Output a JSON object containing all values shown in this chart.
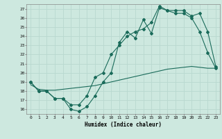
{
  "xlabel": "Humidex (Indice chaleur)",
  "xlim": [
    -0.5,
    23.5
  ],
  "ylim": [
    15.5,
    27.5
  ],
  "yticks": [
    16,
    17,
    18,
    19,
    20,
    21,
    22,
    23,
    24,
    25,
    26,
    27
  ],
  "xticks": [
    0,
    1,
    2,
    3,
    4,
    5,
    6,
    7,
    8,
    9,
    10,
    11,
    12,
    13,
    14,
    15,
    16,
    17,
    18,
    19,
    20,
    21,
    22,
    23
  ],
  "bg_color": "#cde8df",
  "line_color": "#1a6b5a",
  "grid_color": "#b8d8cf",
  "line1_x": [
    0,
    1,
    2,
    3,
    4,
    5,
    6,
    7,
    8,
    9,
    10,
    11,
    12,
    13,
    14,
    15,
    16,
    17,
    18,
    19,
    20,
    21,
    22,
    23
  ],
  "line1_y": [
    19.0,
    18.0,
    18.0,
    17.2,
    17.2,
    16.0,
    15.8,
    16.3,
    17.5,
    19.0,
    20.0,
    23.3,
    24.5,
    23.8,
    25.8,
    24.3,
    27.1,
    26.8,
    26.5,
    26.5,
    26.0,
    24.5,
    22.2,
    20.5
  ],
  "line2_x": [
    0,
    1,
    2,
    3,
    4,
    5,
    6,
    7,
    8,
    9,
    10,
    11,
    12,
    13,
    14,
    15,
    16,
    17,
    18,
    19,
    20,
    21,
    22,
    23
  ],
  "line2_y": [
    19.0,
    18.0,
    18.0,
    17.2,
    17.2,
    16.5,
    16.5,
    17.5,
    19.5,
    20.0,
    22.0,
    23.0,
    24.0,
    24.5,
    24.8,
    25.5,
    27.3,
    26.8,
    26.8,
    26.8,
    26.2,
    26.5,
    24.5,
    20.7
  ],
  "line3_x": [
    0,
    1,
    2,
    3,
    4,
    5,
    6,
    7,
    8,
    9,
    10,
    11,
    12,
    13,
    14,
    15,
    16,
    17,
    18,
    19,
    20,
    21,
    22,
    23
  ],
  "line3_y": [
    18.7,
    18.2,
    18.1,
    18.1,
    18.2,
    18.3,
    18.4,
    18.5,
    18.6,
    18.8,
    19.0,
    19.2,
    19.4,
    19.6,
    19.8,
    20.0,
    20.2,
    20.4,
    20.5,
    20.6,
    20.7,
    20.6,
    20.5,
    20.5
  ]
}
